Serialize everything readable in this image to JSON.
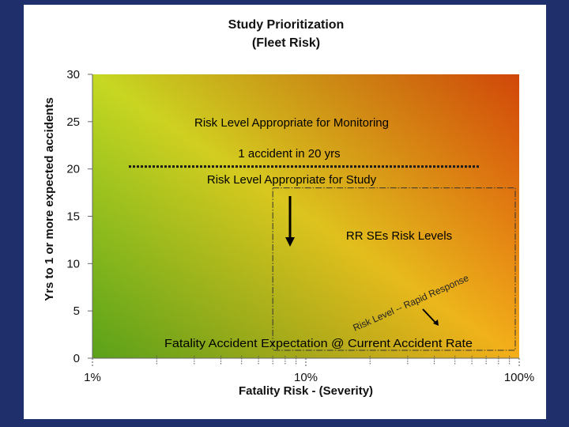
{
  "chart_data": {
    "type": "heatmap",
    "title": "Study Prioritization",
    "subtitle": "(Fleet Risk)",
    "xlabel": "Fatality Risk - (Severity)",
    "ylabel": "Yrs to 1 or more expected accidents",
    "x_scale": "log",
    "xlim": [
      1,
      100
    ],
    "ylim": [
      0,
      30
    ],
    "x_ticks": [
      "1%",
      "10%",
      "100%"
    ],
    "y_ticks": [
      0,
      5,
      10,
      15,
      20,
      25,
      30
    ],
    "gradient": {
      "low_risk_color": "#22cc22",
      "mid_color": "#f0dd22",
      "high_risk_color": "#ff1a00"
    },
    "threshold": {
      "y": 20,
      "label": "1 accident in 20 yrs"
    },
    "regions": {
      "monitoring": "Risk Level Appropriate for Monitoring",
      "study": "Risk Level Appropriate for Study",
      "rr_box": {
        "label": "RR SEs Risk Levels",
        "x_from": 7,
        "x_to": 100,
        "y_from": 0,
        "y_to": 18
      }
    },
    "annotations": {
      "rapid_response": "Risk Level -- Rapid Response",
      "fatality_expectation": "Fatality Accident Expectation @ Current Accident Rate"
    }
  }
}
